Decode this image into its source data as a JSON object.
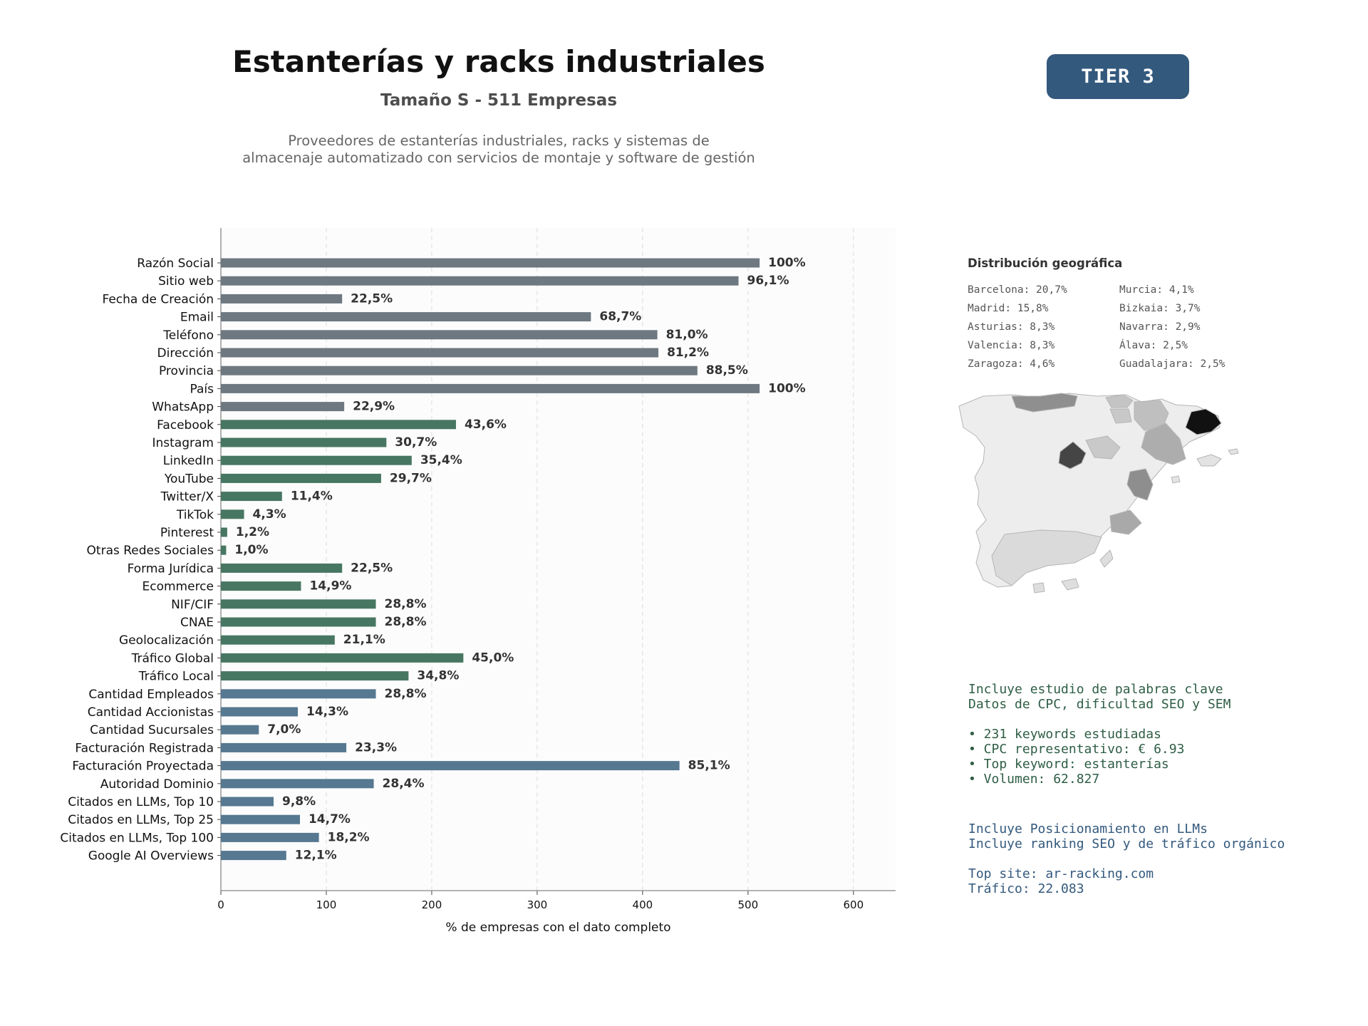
{
  "header": {
    "title": "Estanterías y racks industriales",
    "subtitle": "Tamaño S - 511 Empresas",
    "description_lines": [
      "Proveedores de estanterías industriales, racks y sistemas de",
      "almacenaje automatizado con servicios de montaje y software de gestión"
    ],
    "tier_badge": "TIER 3"
  },
  "chart_data": {
    "type": "bar",
    "orientation": "horizontal",
    "xlabel": "% de empresas con el dato completo",
    "xlim": [
      0,
      640
    ],
    "xticks": [
      0,
      100,
      200,
      300,
      400,
      500,
      600
    ],
    "grid": "vertical dashed",
    "categories": [
      "Razón Social",
      "Sitio web",
      "Fecha de Creación",
      "Email",
      "Teléfono",
      "Dirección",
      "Provincia",
      "País",
      "WhatsApp",
      "Facebook",
      "Instagram",
      "LinkedIn",
      "YouTube",
      "Twitter/X",
      "TikTok",
      "Pinterest",
      "Otras Redes Sociales",
      "Forma Jurídica",
      "Ecommerce",
      "NIF/CIF",
      "CNAE",
      "Geolocalización",
      "Tráfico Global",
      "Tráfico Local",
      "Cantidad Empleados",
      "Cantidad Accionistas",
      "Cantidad Sucursales",
      "Facturación Registrada",
      "Facturación Proyectada",
      "Autoridad Dominio",
      "Citados en LLMs, Top 10",
      "Citados en LLMs, Top 25",
      "Citados en LLMs, Top 100",
      "Google AI Overviews"
    ],
    "values": [
      511,
      491,
      115,
      351,
      414,
      415,
      452,
      511,
      117,
      223,
      157,
      181,
      152,
      58,
      22,
      6,
      5,
      115,
      76,
      147,
      147,
      108,
      230,
      178,
      147,
      73,
      36,
      119,
      435,
      145,
      50,
      75,
      93,
      62
    ],
    "data_labels": [
      "100%",
      "96,1%",
      "22,5%",
      "68,7%",
      "81,0%",
      "81,2%",
      "88,5%",
      "100%",
      "22,9%",
      "43,6%",
      "30,7%",
      "35,4%",
      "29,7%",
      "11,4%",
      "4,3%",
      "1,2%",
      "1,0%",
      "22,5%",
      "14,9%",
      "28,8%",
      "28,8%",
      "21,1%",
      "45,0%",
      "34,8%",
      "28,8%",
      "14,3%",
      "7,0%",
      "23,3%",
      "85,1%",
      "28,4%",
      "9,8%",
      "14,7%",
      "18,2%",
      "12,1%"
    ],
    "groups": [
      "gray",
      "gray",
      "gray",
      "gray",
      "gray",
      "gray",
      "gray",
      "gray",
      "gray",
      "green",
      "green",
      "green",
      "green",
      "green",
      "green",
      "green",
      "green",
      "green",
      "green",
      "green",
      "green",
      "green",
      "green",
      "green",
      "blue",
      "blue",
      "blue",
      "blue",
      "blue",
      "blue",
      "blue",
      "blue",
      "blue",
      "blue"
    ],
    "colors": {
      "gray": "#6e7880",
      "green": "#477762",
      "blue": "#567891"
    }
  },
  "geo": {
    "title": "Distribución geográfica",
    "entries": [
      "Barcelona: 20,7%",
      "Murcia: 4,1%",
      "Madrid: 15,8%",
      "Bizkaia: 3,7%",
      "Asturias: 8,3%",
      "Navarra: 2,9%",
      "Valencia: 8,3%",
      "Álava: 2,5%",
      "Zaragoza: 4,6%",
      "Guadalajara: 2,5%"
    ]
  },
  "keywords": {
    "lines": [
      "Incluye estudio de palabras clave",
      "Datos de CPC, dificultad SEO y SEM"
    ],
    "bullets": [
      "• 231 keywords estudiadas",
      "• CPC representativo: € 6.93",
      "• Top keyword: estanterías",
      "• Volumen: 62.827"
    ]
  },
  "llm": {
    "lines": [
      "Incluye Posicionamiento en LLMs",
      "Incluye ranking SEO y de tráfico orgánico"
    ],
    "top_site": "Top site: ar-racking.com",
    "traffic": "Tráfico: 22.083"
  }
}
